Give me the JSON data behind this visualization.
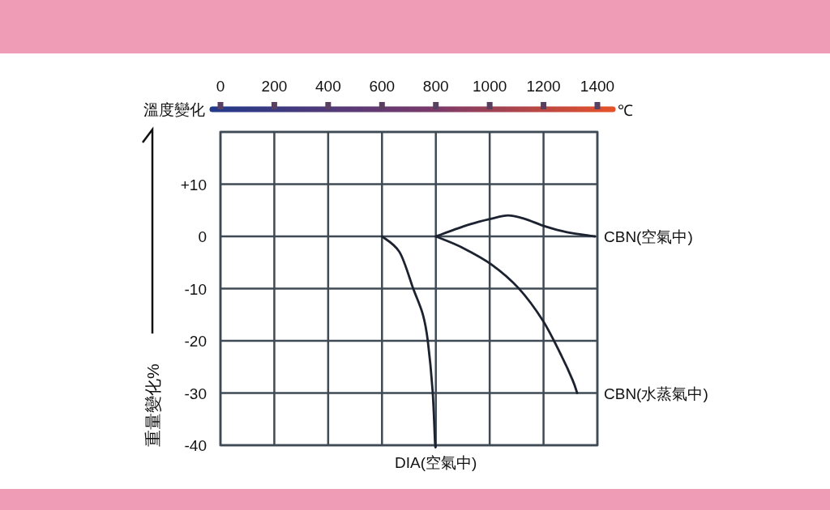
{
  "chart_data": {
    "type": "line",
    "xlabel": "溫度變化",
    "ylabel": "重量變化%",
    "annotations": [
      "℃"
    ],
    "xlim": [
      0,
      1400
    ],
    "xticks": [
      0,
      200,
      400,
      600,
      800,
      1000,
      1200,
      1400
    ],
    "ylim": [
      -40,
      20
    ],
    "yticks": [
      -40,
      -30,
      -20,
      -10,
      0,
      {
        "value": 10,
        "label": "+10"
      },
      {
        "value": 20,
        "label": null
      }
    ],
    "grid": true,
    "line_style": "solid",
    "marker": "none",
    "series": [
      {
        "name": "CBN(空氣中)",
        "color": "#1c2230",
        "x": [
          800,
          926,
          1007,
          1068,
          1128,
          1206,
          1287,
          1390
        ],
        "values": [
          0,
          2.3,
          3.4,
          4.0,
          3.4,
          1.9,
          0.8,
          0
        ]
      },
      {
        "name": "CBN(水蒸氣中)",
        "color": "#1c2230",
        "x": [
          800,
          896,
          1007,
          1107,
          1197,
          1266,
          1308,
          1325
        ],
        "values": [
          0,
          -2.1,
          -5.4,
          -9.9,
          -16.1,
          -22.8,
          -27.5,
          -30
        ]
      },
      {
        "name": "DIA(空氣中)",
        "color": "#1c2230",
        "x": [
          600,
          665,
          716,
          752,
          770,
          788,
          797,
          800
        ],
        "values": [
          0,
          -3,
          -10,
          -15,
          -20,
          -29.5,
          -39.5,
          -40
        ]
      }
    ]
  }
}
